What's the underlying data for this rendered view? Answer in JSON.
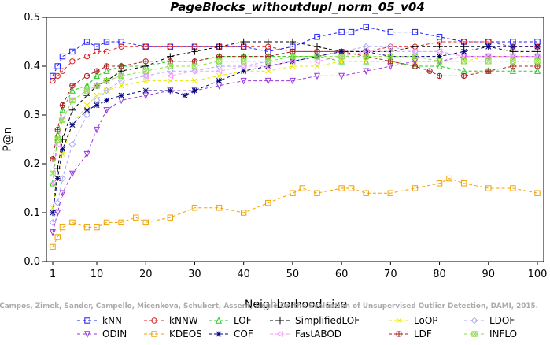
{
  "chart_data": {
    "type": "line",
    "title": "PageBlocks_withoutdupl_norm_05_v04",
    "xlabel": "Neighborhood size",
    "ylabel": "P@n",
    "xlim": [
      0,
      100
    ],
    "ylim": [
      0,
      0.5
    ],
    "xticks": [
      1,
      10,
      20,
      30,
      40,
      50,
      60,
      70,
      80,
      90,
      100
    ],
    "yticks": [
      0.0,
      0.1,
      0.2,
      0.3,
      0.4,
      0.5
    ],
    "grid": false,
    "legend_position": "bottom",
    "watermark": "Campos, Zimek, Sander, Campello, Micenkova, Schubert, Assent, Houle On the Evaluation of Unsupervised Outlier Detection, DAMI, 2015.",
    "series": [
      {
        "name": "kNN",
        "color": "#1a1aff",
        "marker": "square",
        "x": [
          1,
          2,
          3,
          5,
          8,
          10,
          12,
          15,
          20,
          25,
          30,
          35,
          40,
          45,
          50,
          55,
          60,
          62,
          65,
          70,
          75,
          80,
          85,
          90,
          95,
          100
        ],
        "y": [
          0.38,
          0.4,
          0.42,
          0.43,
          0.45,
          0.44,
          0.45,
          0.45,
          0.44,
          0.44,
          0.44,
          0.44,
          0.44,
          0.43,
          0.44,
          0.46,
          0.47,
          0.47,
          0.48,
          0.47,
          0.47,
          0.46,
          0.45,
          0.45,
          0.45,
          0.45
        ]
      },
      {
        "name": "kNNW",
        "color": "#e02020",
        "marker": "circle",
        "x": [
          1,
          2,
          3,
          5,
          8,
          10,
          12,
          15,
          20,
          25,
          30,
          35,
          40,
          45,
          50,
          55,
          60,
          65,
          70,
          75,
          80,
          85,
          90,
          95,
          100
        ],
        "y": [
          0.37,
          0.38,
          0.39,
          0.41,
          0.42,
          0.43,
          0.43,
          0.44,
          0.44,
          0.44,
          0.44,
          0.44,
          0.44,
          0.44,
          0.43,
          0.43,
          0.43,
          0.43,
          0.44,
          0.44,
          0.45,
          0.45,
          0.45,
          0.44,
          0.44
        ]
      },
      {
        "name": "LOF",
        "color": "#22cc22",
        "marker": "triangle-up",
        "x": [
          1,
          2,
          3,
          5,
          8,
          10,
          12,
          15,
          20,
          25,
          30,
          35,
          40,
          45,
          50,
          55,
          60,
          65,
          70,
          75,
          80,
          85,
          90,
          95,
          100
        ],
        "y": [
          0.16,
          0.26,
          0.31,
          0.35,
          0.36,
          0.38,
          0.39,
          0.4,
          0.4,
          0.41,
          0.41,
          0.42,
          0.42,
          0.42,
          0.42,
          0.42,
          0.41,
          0.41,
          0.41,
          0.4,
          0.4,
          0.39,
          0.39,
          0.39,
          0.39
        ]
      },
      {
        "name": "SimplifiedLOF",
        "color": "#000000",
        "marker": "plus",
        "x": [
          1,
          2,
          3,
          5,
          8,
          10,
          12,
          15,
          20,
          25,
          30,
          35,
          40,
          45,
          50,
          55,
          60,
          65,
          70,
          75,
          80,
          85,
          90,
          95,
          100
        ],
        "y": [
          0.1,
          0.19,
          0.25,
          0.31,
          0.34,
          0.36,
          0.37,
          0.39,
          0.4,
          0.42,
          0.43,
          0.44,
          0.45,
          0.45,
          0.45,
          0.44,
          0.43,
          0.43,
          0.43,
          0.44,
          0.44,
          0.44,
          0.44,
          0.43,
          0.43
        ]
      },
      {
        "name": "LoOP",
        "color": "#e8e800",
        "marker": "x",
        "x": [
          1,
          2,
          3,
          5,
          8,
          10,
          12,
          15,
          20,
          25,
          30,
          35,
          40,
          45,
          50,
          55,
          60,
          65,
          70,
          75,
          80,
          85,
          90,
          95,
          100
        ],
        "y": [
          0.11,
          0.17,
          0.22,
          0.28,
          0.32,
          0.34,
          0.35,
          0.36,
          0.37,
          0.37,
          0.37,
          0.38,
          0.39,
          0.39,
          0.4,
          0.4,
          0.41,
          0.41,
          0.41,
          0.41,
          0.41,
          0.41,
          0.42,
          0.42,
          0.42
        ]
      },
      {
        "name": "LDOF",
        "color": "#aaaaff",
        "marker": "diamond",
        "x": [
          1,
          2,
          3,
          5,
          8,
          10,
          12,
          15,
          20,
          25,
          30,
          35,
          40,
          45,
          50,
          55,
          60,
          65,
          70,
          75,
          80,
          85,
          90,
          95,
          100
        ],
        "y": [
          0.08,
          0.12,
          0.17,
          0.24,
          0.3,
          0.33,
          0.35,
          0.37,
          0.38,
          0.39,
          0.39,
          0.4,
          0.4,
          0.41,
          0.41,
          0.42,
          0.43,
          0.44,
          0.44,
          0.43,
          0.43,
          0.42,
          0.42,
          0.42,
          0.42
        ]
      },
      {
        "name": "ODIN",
        "color": "#9933dd",
        "marker": "triangle-down",
        "x": [
          1,
          2,
          3,
          5,
          8,
          10,
          12,
          15,
          20,
          25,
          30,
          35,
          40,
          45,
          50,
          55,
          60,
          65,
          70,
          75,
          80,
          85,
          90,
          95,
          100
        ],
        "y": [
          0.06,
          0.1,
          0.14,
          0.18,
          0.22,
          0.27,
          0.31,
          0.33,
          0.34,
          0.35,
          0.35,
          0.36,
          0.37,
          0.37,
          0.37,
          0.38,
          0.38,
          0.39,
          0.4,
          0.41,
          0.41,
          0.42,
          0.42,
          0.42,
          0.42
        ]
      },
      {
        "name": "KDEOS",
        "color": "#f0a000",
        "marker": "square",
        "x": [
          1,
          2,
          3,
          5,
          8,
          10,
          12,
          15,
          18,
          20,
          25,
          30,
          35,
          40,
          45,
          50,
          52,
          55,
          60,
          62,
          65,
          70,
          75,
          80,
          82,
          85,
          90,
          95,
          100
        ],
        "y": [
          0.03,
          0.05,
          0.07,
          0.08,
          0.07,
          0.07,
          0.08,
          0.08,
          0.09,
          0.08,
          0.09,
          0.11,
          0.11,
          0.1,
          0.12,
          0.14,
          0.15,
          0.14,
          0.15,
          0.15,
          0.14,
          0.14,
          0.15,
          0.16,
          0.17,
          0.16,
          0.15,
          0.15,
          0.14
        ]
      },
      {
        "name": "LDF",
        "color": "#aa2222",
        "marker": "circle-plus",
        "x": [
          1,
          2,
          3,
          5,
          8,
          10,
          12,
          15,
          20,
          25,
          30,
          35,
          40,
          45,
          50,
          55,
          60,
          65,
          70,
          75,
          78,
          80,
          85,
          90,
          95,
          100
        ],
        "y": [
          0.21,
          0.27,
          0.32,
          0.36,
          0.38,
          0.39,
          0.4,
          0.4,
          0.41,
          0.41,
          0.41,
          0.42,
          0.42,
          0.42,
          0.43,
          0.43,
          0.43,
          0.42,
          0.41,
          0.4,
          0.39,
          0.38,
          0.38,
          0.39,
          0.4,
          0.4
        ]
      },
      {
        "name": "COF",
        "color": "#000080",
        "marker": "asterisk",
        "x": [
          1,
          2,
          3,
          5,
          8,
          10,
          12,
          15,
          20,
          25,
          28,
          30,
          35,
          40,
          45,
          50,
          55,
          60,
          65,
          70,
          75,
          80,
          85,
          90,
          95,
          100
        ],
        "y": [
          0.1,
          0.17,
          0.23,
          0.28,
          0.31,
          0.32,
          0.33,
          0.34,
          0.35,
          0.35,
          0.34,
          0.35,
          0.37,
          0.39,
          0.4,
          0.41,
          0.42,
          0.43,
          0.43,
          0.42,
          0.42,
          0.42,
          0.43,
          0.44,
          0.44,
          0.44
        ]
      },
      {
        "name": "FastABOD",
        "color": "#ff99ff",
        "marker": "triangle-left",
        "x": [
          1,
          2,
          3,
          5,
          8,
          10,
          12,
          15,
          20,
          25,
          30,
          35,
          40,
          45,
          50,
          55,
          60,
          65,
          70,
          75,
          80,
          85,
          90,
          95,
          100
        ],
        "y": [
          0.16,
          0.24,
          0.29,
          0.33,
          0.35,
          0.36,
          0.37,
          0.38,
          0.38,
          0.38,
          0.39,
          0.39,
          0.4,
          0.4,
          0.41,
          0.41,
          0.42,
          0.43,
          0.43,
          0.43,
          0.43,
          0.42,
          0.42,
          0.42,
          0.42
        ]
      },
      {
        "name": "INFLO",
        "color": "#88dd44",
        "marker": "square-x",
        "x": [
          1,
          2,
          3,
          5,
          8,
          10,
          12,
          15,
          20,
          25,
          30,
          35,
          40,
          45,
          50,
          55,
          60,
          65,
          70,
          75,
          80,
          85,
          90,
          95,
          100
        ],
        "y": [
          0.18,
          0.25,
          0.29,
          0.33,
          0.35,
          0.36,
          0.37,
          0.38,
          0.39,
          0.4,
          0.4,
          0.41,
          0.41,
          0.41,
          0.42,
          0.42,
          0.42,
          0.42,
          0.42,
          0.42,
          0.41,
          0.41,
          0.41,
          0.41,
          0.41
        ]
      }
    ],
    "legend_order": [
      "kNN",
      "kNNW",
      "LOF",
      "SimplifiedLOF",
      "LoOP",
      "LDOF",
      "ODIN",
      "KDEOS",
      "COF",
      "FastABOD",
      "LDF",
      "INFLO"
    ]
  }
}
